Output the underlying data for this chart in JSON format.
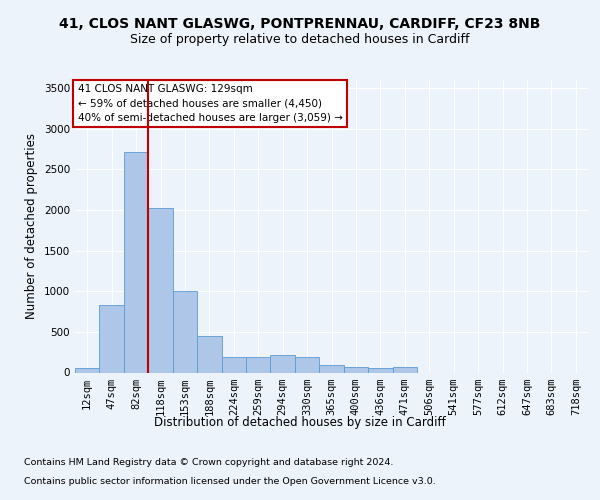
{
  "title_line1": "41, CLOS NANT GLASWG, PONTPRENNAU, CARDIFF, CF23 8NB",
  "title_line2": "Size of property relative to detached houses in Cardiff",
  "xlabel": "Distribution of detached houses by size in Cardiff",
  "ylabel": "Number of detached properties",
  "categories": [
    "12sqm",
    "47sqm",
    "82sqm",
    "118sqm",
    "153sqm",
    "188sqm",
    "224sqm",
    "259sqm",
    "294sqm",
    "330sqm",
    "365sqm",
    "400sqm",
    "436sqm",
    "471sqm",
    "506sqm",
    "541sqm",
    "577sqm",
    "612sqm",
    "647sqm",
    "683sqm",
    "718sqm"
  ],
  "values": [
    55,
    830,
    2720,
    2020,
    1000,
    450,
    190,
    190,
    220,
    195,
    95,
    70,
    60,
    65,
    0,
    0,
    0,
    0,
    0,
    0,
    0
  ],
  "bar_color": "#aec6e8",
  "bar_edge_color": "#5b9bd5",
  "vline_color": "#c00000",
  "vline_x": 2.5,
  "annotation_text": "41 CLOS NANT GLASWG: 129sqm\n← 59% of detached houses are smaller (4,450)\n40% of semi-detached houses are larger (3,059) →",
  "annotation_box_facecolor": "#ffffff",
  "annotation_box_edgecolor": "#c00000",
  "ylim": [
    0,
    3600
  ],
  "yticks": [
    0,
    500,
    1000,
    1500,
    2000,
    2500,
    3000,
    3500
  ],
  "footer_line1": "Contains HM Land Registry data © Crown copyright and database right 2024.",
  "footer_line2": "Contains public sector information licensed under the Open Government Licence v3.0.",
  "bg_color": "#edf3fb",
  "grid_color": "#ffffff",
  "title_fontsize": 10,
  "subtitle_fontsize": 9,
  "axis_label_fontsize": 8.5,
  "ylabel_fontsize": 8.5,
  "tick_fontsize": 7.5,
  "ann_fontsize": 7.5,
  "footer_fontsize": 6.8
}
